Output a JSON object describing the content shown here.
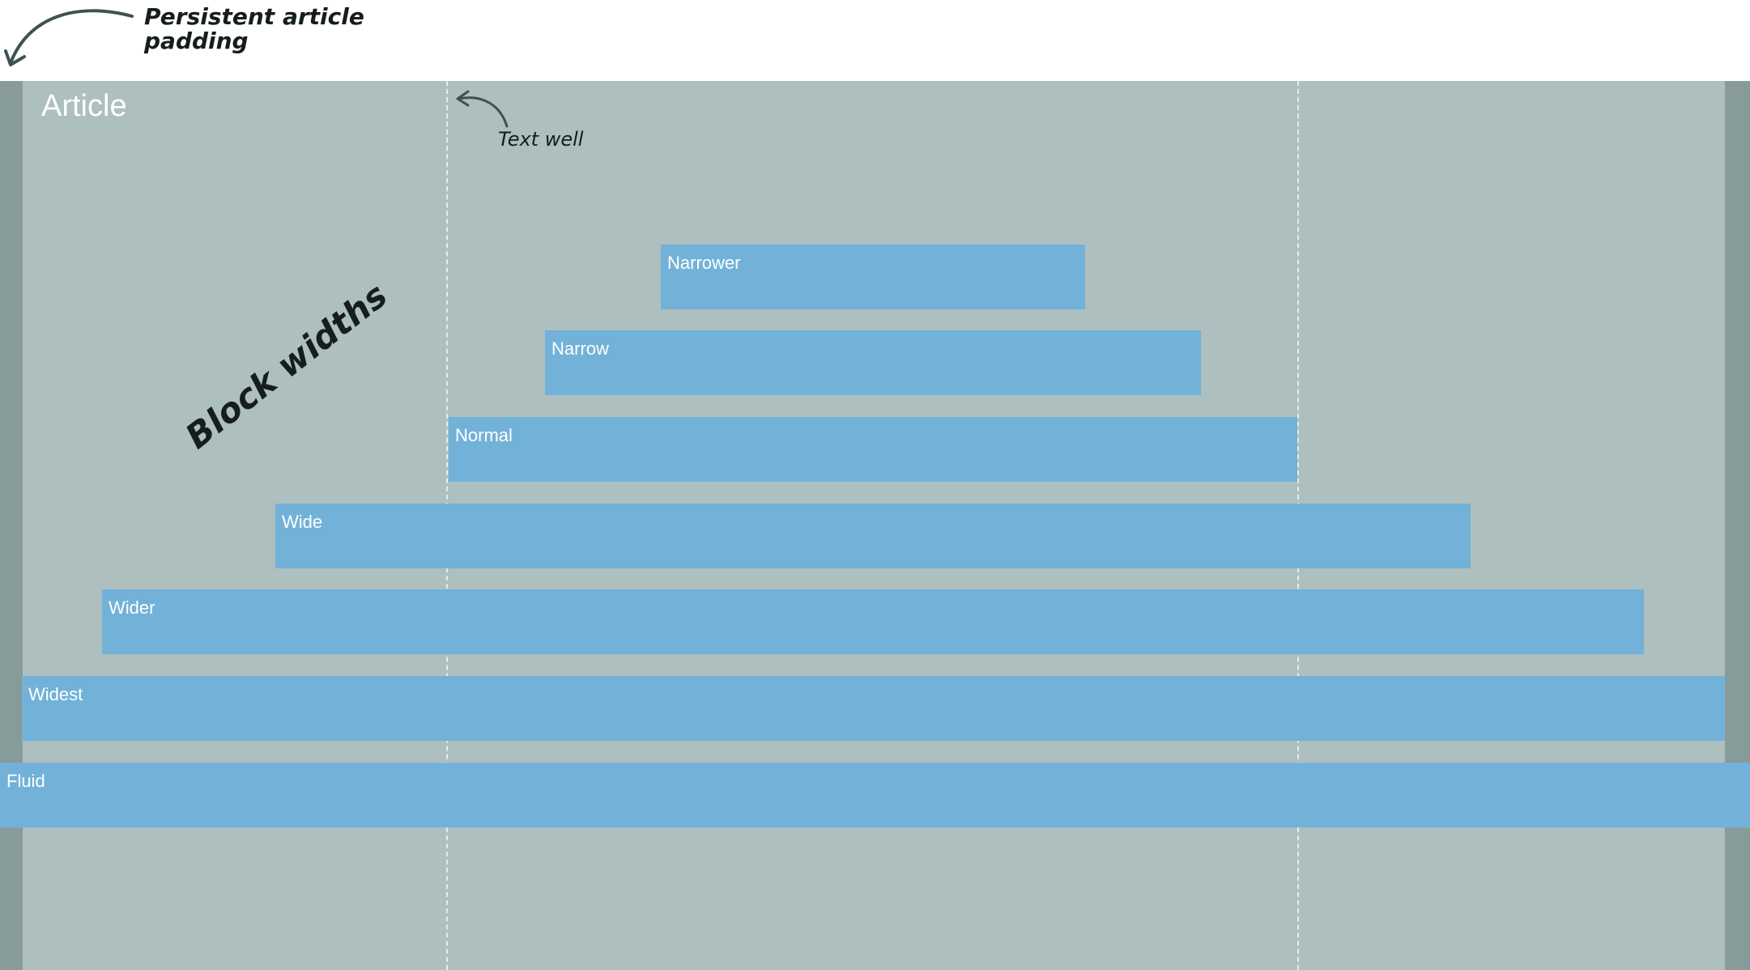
{
  "annotations": {
    "persistent_padding_line1": "Persistent article",
    "persistent_padding_line2": "padding",
    "text_well": "Text well",
    "block_widths": "Block widths"
  },
  "article": {
    "title": "Article"
  },
  "blocks": [
    {
      "label": "Narrower"
    },
    {
      "label": "Narrow"
    },
    {
      "label": "Normal"
    },
    {
      "label": "Wide"
    },
    {
      "label": "Wider"
    },
    {
      "label": "Widest"
    },
    {
      "label": "Fluid"
    }
  ],
  "colors": {
    "page_background": "#ffffff",
    "article_background": "#adbfbe",
    "article_padding": "#879c9a",
    "block": "#72b2d8",
    "guide_line": "#e4eceb",
    "annotation_ink": "#161d1d",
    "arrow": "#3e5253"
  },
  "icons": [
    "curved-arrow-icon"
  ]
}
